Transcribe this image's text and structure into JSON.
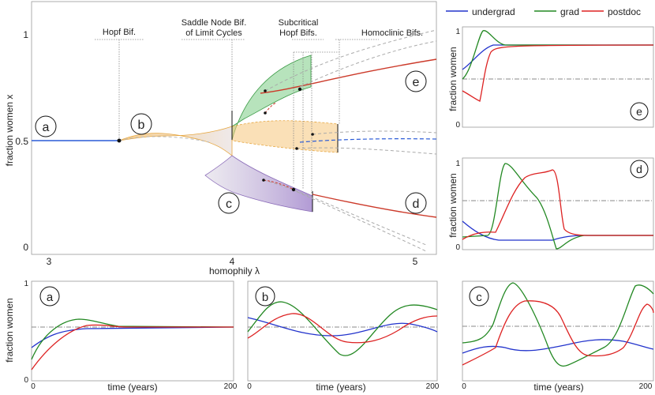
{
  "main": {
    "xlabel": "homophily λ",
    "ylabel": "fraction women x",
    "xticks": [
      "3",
      "4",
      "5"
    ],
    "yticks": [
      "0",
      "0.5",
      "1"
    ],
    "annotations": {
      "hopf": [
        "Hopf Bif."
      ],
      "saddle": [
        "Saddle Node Bif.",
        "of Limit Cycles"
      ],
      "subcritical": [
        "Subcritical",
        "Hopf Bifs."
      ],
      "homoclinic": [
        "Homoclinic Bifs."
      ]
    },
    "region_labels": [
      "a",
      "b",
      "c",
      "d",
      "e"
    ]
  },
  "legend": {
    "entries": [
      {
        "name": "undergrad",
        "color": "#2233cc"
      },
      {
        "name": "grad",
        "color": "#228822"
      },
      {
        "name": "postdoc",
        "color": "#dd2222"
      }
    ]
  },
  "panels": {
    "a": {
      "label": "a",
      "xlabel": "time (years)",
      "ylabel": "fraction women",
      "xticks": [
        "0",
        "200"
      ],
      "yticks": [
        "0",
        "1"
      ]
    },
    "b": {
      "label": "b",
      "xlabel": "time (years)",
      "xticks": [
        "0",
        "200"
      ]
    },
    "c": {
      "label": "c",
      "xlabel": "time (years)",
      "xticks": [
        "0",
        "200"
      ]
    },
    "d": {
      "label": "d",
      "ylabel": "fraction women",
      "yticks": [
        "0",
        "1"
      ]
    },
    "e": {
      "label": "e",
      "ylabel": "fraction women",
      "yticks": [
        "0",
        "1"
      ]
    }
  },
  "colors": {
    "undergrad": "#2233cc",
    "grad": "#228822",
    "postdoc": "#dd2222",
    "orange_fill": "#f6c77c",
    "purple_fill": "#b8a3d6",
    "green_fill": "#9fd9a5"
  }
}
